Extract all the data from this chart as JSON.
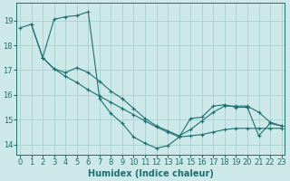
{
  "xlabel": "Humidex (Indice chaleur)",
  "bg_color": "#cce8e8",
  "grid_color": "#aacfcf",
  "line_color": "#1e7070",
  "xlim": [
    -0.3,
    23.3
  ],
  "ylim": [
    13.6,
    19.7
  ],
  "yticks": [
    14,
    15,
    16,
    17,
    18,
    19
  ],
  "xticks": [
    0,
    1,
    2,
    3,
    4,
    5,
    6,
    7,
    8,
    9,
    10,
    11,
    12,
    13,
    14,
    15,
    16,
    17,
    18,
    19,
    20,
    21,
    22,
    23
  ],
  "series1_x": [
    0,
    1,
    2,
    3,
    4,
    5,
    6,
    7,
    8,
    9,
    10,
    11,
    12,
    13,
    14,
    15,
    16,
    17,
    18,
    19,
    20,
    21,
    22,
    23
  ],
  "series1_y": [
    18.7,
    18.85,
    17.5,
    17.05,
    16.75,
    16.5,
    16.2,
    15.95,
    15.7,
    15.45,
    15.2,
    14.95,
    14.7,
    14.5,
    14.3,
    14.35,
    14.4,
    14.5,
    14.6,
    14.65,
    14.65,
    14.65,
    14.65,
    14.65
  ],
  "series2_x": [
    1,
    2,
    3,
    4,
    5,
    6,
    7,
    8,
    9,
    10,
    11,
    12,
    13,
    14,
    15,
    16,
    17,
    18,
    19,
    20,
    21,
    22,
    23
  ],
  "series2_y": [
    18.85,
    17.5,
    19.05,
    19.15,
    19.2,
    19.35,
    15.85,
    15.25,
    14.85,
    14.3,
    14.05,
    13.85,
    13.95,
    14.3,
    15.05,
    15.1,
    15.55,
    15.6,
    15.5,
    15.5,
    14.35,
    14.85,
    14.75
  ],
  "series3_x": [
    2,
    3,
    4,
    5,
    6,
    7,
    8,
    9,
    10,
    11,
    12,
    13,
    14,
    15,
    16,
    17,
    18,
    19,
    20,
    21,
    22,
    23
  ],
  "series3_y": [
    17.5,
    17.05,
    16.9,
    17.1,
    16.9,
    16.55,
    16.15,
    15.85,
    15.45,
    15.05,
    14.75,
    14.55,
    14.35,
    14.6,
    14.95,
    15.3,
    15.55,
    15.55,
    15.55,
    15.3,
    14.9,
    14.75
  ],
  "tick_fontsize": 6,
  "xlabel_fontsize": 7
}
